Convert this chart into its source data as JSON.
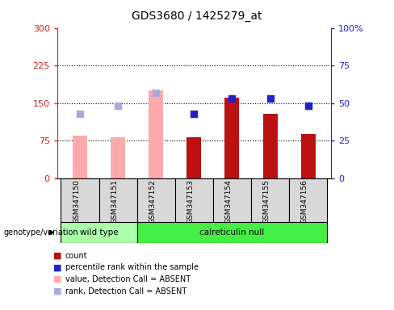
{
  "title": "GDS3680 / 1425279_at",
  "samples": [
    "GSM347150",
    "GSM347151",
    "GSM347152",
    "GSM347153",
    "GSM347154",
    "GSM347155",
    "GSM347156"
  ],
  "absent_mask": [
    true,
    true,
    true,
    false,
    false,
    false,
    false
  ],
  "bar_values": [
    85,
    82,
    175,
    82,
    160,
    128,
    88
  ],
  "rank_values_pct": [
    43,
    48,
    57,
    43,
    53,
    53,
    48
  ],
  "bar_color_absent": "#ffaaaa",
  "bar_color_present": "#bb1111",
  "rank_color_absent": "#aaaadd",
  "rank_color_present": "#2222cc",
  "left_ylim": [
    0,
    300
  ],
  "right_ylim": [
    0,
    100
  ],
  "left_yticks": [
    0,
    75,
    150,
    225,
    300
  ],
  "right_yticks": [
    0,
    25,
    50,
    75,
    100
  ],
  "right_yticklabels": [
    "0",
    "25",
    "50",
    "75",
    "100%"
  ],
  "left_tick_color": "#cc2222",
  "right_tick_color": "#2222cc",
  "hline_vals": [
    75,
    150,
    225
  ],
  "wt_label": "wild type",
  "cr_label": "calreticulin null",
  "wt_color": "#aaffaa",
  "cr_color": "#44ee44",
  "genotype_label": "genotype/variation",
  "legend": [
    {
      "label": "count",
      "color": "#bb1111"
    },
    {
      "label": "percentile rank within the sample",
      "color": "#2222cc"
    },
    {
      "label": "value, Detection Call = ABSENT",
      "color": "#ffaaaa"
    },
    {
      "label": "rank, Detection Call = ABSENT",
      "color": "#aaaadd"
    }
  ]
}
